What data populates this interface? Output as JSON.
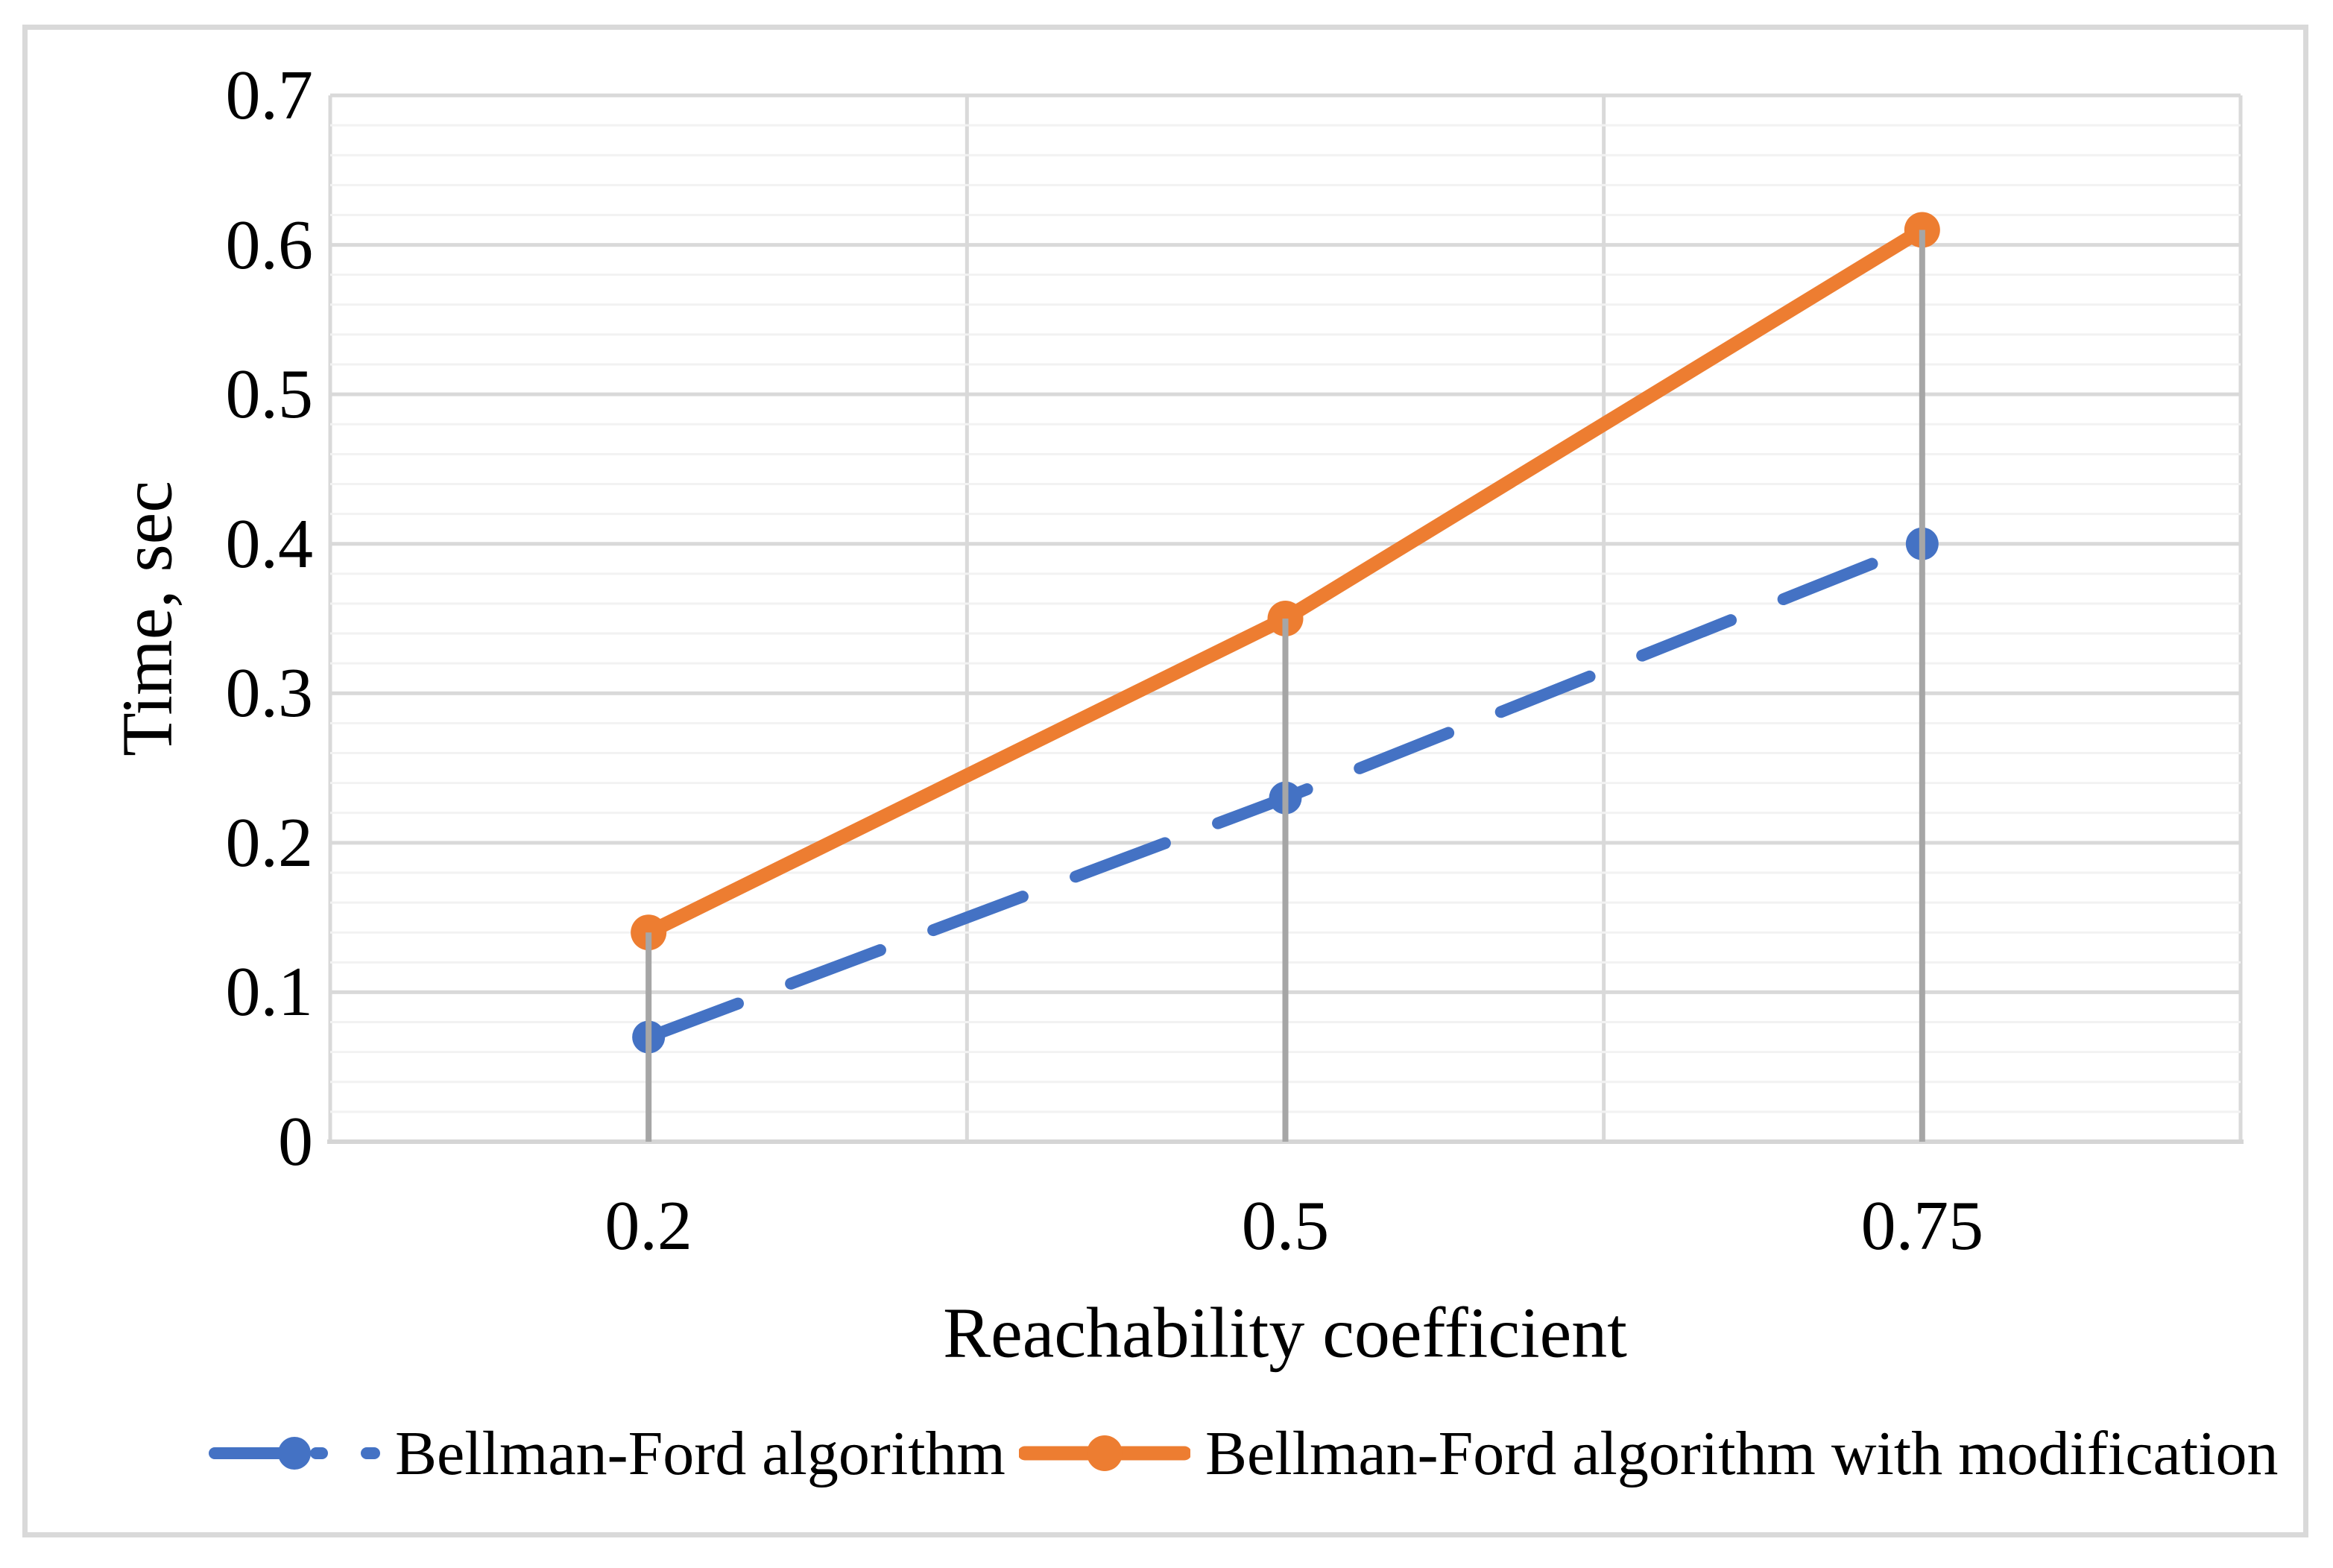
{
  "chart_data": {
    "type": "line",
    "xlabel": "Reachability coefficient",
    "ylabel": "Time, sec",
    "categories": [
      "0.2",
      "0.5",
      "0.75"
    ],
    "series": [
      {
        "name": "Bellman-Ford algorithm",
        "values": [
          0.07,
          0.23,
          0.4
        ],
        "color": "#4472C4",
        "line_style": "dashed",
        "marker": "circle"
      },
      {
        "name": "Bellman-Ford algorithm with modification",
        "values": [
          0.14,
          0.35,
          0.61
        ],
        "color": "#ED7D31",
        "line_style": "solid",
        "marker": "circle"
      }
    ],
    "ylim": [
      0,
      0.7
    ],
    "y_major_step": 0.1,
    "y_minor_step": 0.02,
    "yticks": [
      "0",
      "0.1",
      "0.2",
      "0.3",
      "0.4",
      "0.5",
      "0.6",
      "0.7"
    ],
    "grid": "horizontal major+minor, vertical category boundaries",
    "drop_lines": true,
    "legend_position": "bottom",
    "colors": {
      "grid_major": "#d9d9d9",
      "grid_minor": "#f2f2f2",
      "axis_line": "#d5d5d5",
      "drop_line": "#a6a6a6",
      "frame_border": "#d9d9d9",
      "text": "#000000",
      "background": "#ffffff"
    }
  }
}
